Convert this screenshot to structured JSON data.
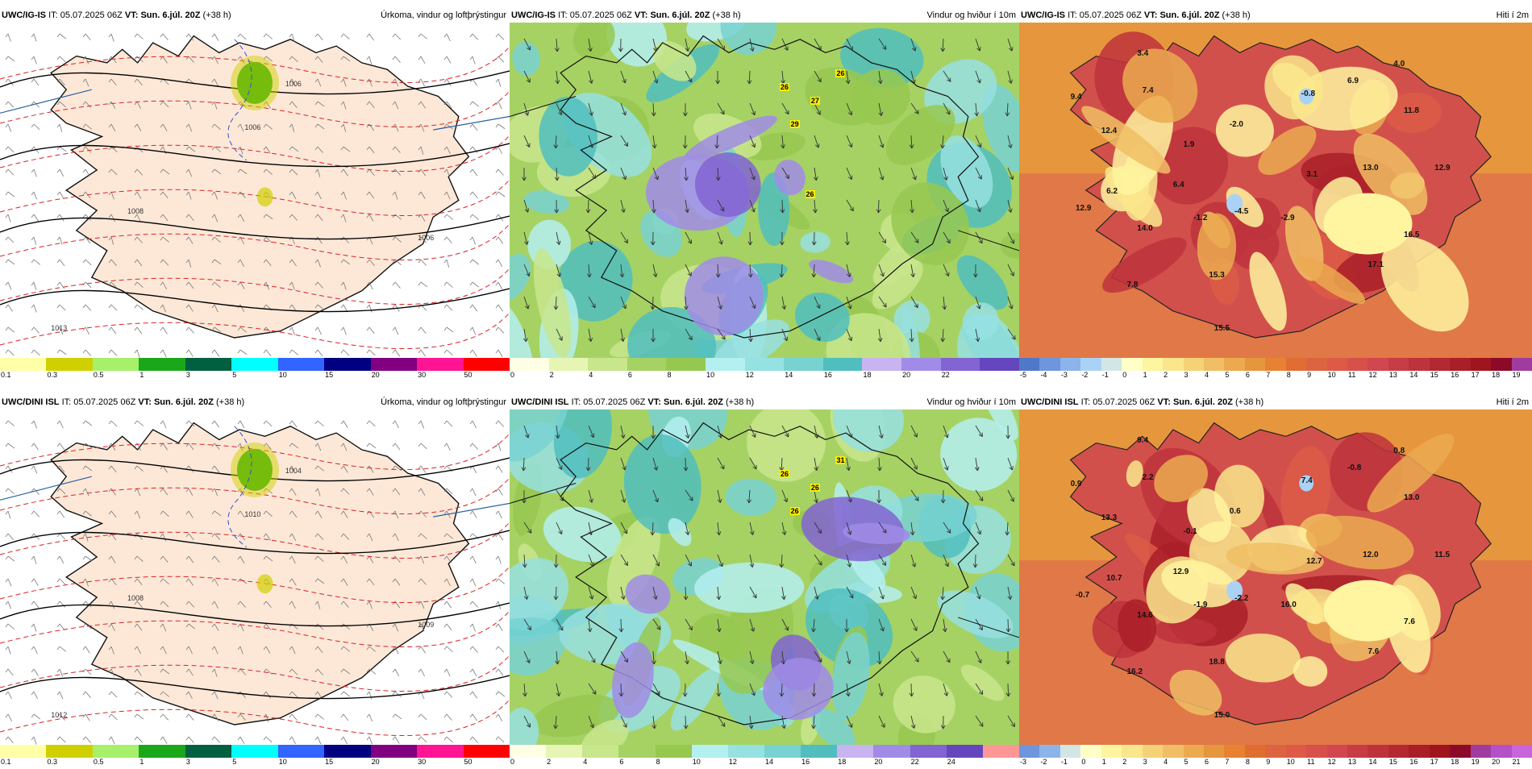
{
  "rows": [
    {
      "model": "UWC/IG-IS",
      "panels": [
        {
          "it_label": "IT:",
          "it": "05.07.2025 06Z",
          "vt_label": "VT:",
          "vt": "Sun. 6.júl. 20Z",
          "lead": "(+38 h)",
          "title": "Úrkoma, vindur og loftþrýstingur",
          "type": "precip",
          "ticks": [
            "0.1",
            "0.3",
            "0.5",
            "1",
            "3",
            "5",
            "10",
            "15",
            "20",
            "30",
            "50"
          ],
          "colors": [
            "#ffffa8",
            "#d0d000",
            "#a6f06a",
            "#1aa81a",
            "#006040",
            "#00ffff",
            "#3264ff",
            "#000080",
            "#800080",
            "#ff1493",
            "#ff0000"
          ],
          "labels": [
            {
              "t": "1006"
            },
            {
              "t": "1006"
            },
            {
              "t": "1006"
            },
            {
              "t": "1008"
            },
            {
              "t": "1013"
            }
          ]
        },
        {
          "it_label": "IT:",
          "it": "05.07.2025 06Z",
          "vt_label": "VT:",
          "vt": "Sun. 6.júl. 20Z",
          "lead": "(+38 h)",
          "title": "Vindur og hviður í 10m",
          "type": "wind",
          "ticks": [
            "0",
            "2",
            "4",
            "6",
            "8",
            "10",
            "12",
            "14",
            "16",
            "18",
            "20",
            "22"
          ],
          "colors": [
            "#ffffe6",
            "#e6f5b4",
            "#c8e68c",
            "#a6d264",
            "#96c850",
            "#b4f0f0",
            "#96e1e1",
            "#78d2d2",
            "#50bebe",
            "#c8b4f0",
            "#a08ce6",
            "#8264d2",
            "#6446be"
          ],
          "gusts": [
            "26",
            "27",
            "26",
            "29",
            "26"
          ]
        },
        {
          "it_label": "IT:",
          "it": "05.07.2025 06Z",
          "vt_label": "VT:",
          "vt": "Sun. 6.júl. 20Z",
          "lead": "(+38 h)",
          "title": "Hiti í 2m",
          "type": "temp",
          "ticks": [
            "-5",
            "-4",
            "-3",
            "-2",
            "-1",
            "0",
            "1",
            "2",
            "3",
            "4",
            "5",
            "6",
            "7",
            "8",
            "9",
            "10",
            "11",
            "12",
            "13",
            "14",
            "15",
            "16",
            "17",
            "18",
            "19"
          ],
          "colors": [
            "#5078c8",
            "#6e96dc",
            "#8cb4eb",
            "#aad2f5",
            "#d2e6e6",
            "#ffffc8",
            "#fff5a0",
            "#fae68c",
            "#f5d278",
            "#f0be64",
            "#ebaa50",
            "#e6963c",
            "#e68232",
            "#e06e32",
            "#dc6441",
            "#dc5a46",
            "#d7504b",
            "#d24650",
            "#c83c46",
            "#be323c",
            "#b42832",
            "#aa1e28",
            "#a0141e",
            "#8c0a28",
            "#a03ca0"
          ],
          "values": [
            "3.4",
            "4.0",
            "9.4",
            "7.4",
            "-0.8",
            "6.9",
            "12.4",
            "-2.0",
            "11.8",
            "1.9",
            "3.1",
            "13.0",
            "12.9",
            "6.2",
            "6.4",
            "12.9",
            "-1.2",
            "-4.5",
            "-2.9",
            "14.0",
            "16.5",
            "17.1",
            "7.8",
            "15.3",
            "15.5"
          ]
        }
      ]
    },
    {
      "model": "UWC/DINI ISL",
      "panels": [
        {
          "it_label": "IT:",
          "it": "05.07.2025 06Z",
          "vt_label": "VT:",
          "vt": "Sun. 6.júl. 20Z",
          "lead": "(+38 h)",
          "title": "Úrkoma, vindur og loftþrýstingur",
          "type": "precip",
          "ticks": [
            "0.1",
            "0.3",
            "0.5",
            "1",
            "3",
            "5",
            "10",
            "15",
            "20",
            "30",
            "50"
          ],
          "colors": [
            "#ffffa8",
            "#d0d000",
            "#a6f06a",
            "#1aa81a",
            "#006040",
            "#00ffff",
            "#3264ff",
            "#000080",
            "#800080",
            "#ff1493",
            "#ff0000"
          ],
          "labels": [
            {
              "t": "1004"
            },
            {
              "t": "1010"
            },
            {
              "t": "1009"
            },
            {
              "t": "1008"
            },
            {
              "t": "1012"
            }
          ]
        },
        {
          "it_label": "IT:",
          "it": "05.07.2025 06Z",
          "vt_label": "VT:",
          "vt": "Sun. 6.júl. 20Z",
          "lead": "(+38 h)",
          "title": "Vindur og hviður í 10m",
          "type": "wind",
          "ticks": [
            "0",
            "2",
            "4",
            "6",
            "8",
            "10",
            "12",
            "14",
            "16",
            "18",
            "20",
            "22",
            "24"
          ],
          "colors": [
            "#ffffe6",
            "#e6f5b4",
            "#c8e68c",
            "#a6d264",
            "#96c850",
            "#b4f0f0",
            "#96e1e1",
            "#78d2d2",
            "#50bebe",
            "#c8b4f0",
            "#a08ce6",
            "#8264d2",
            "#6446be",
            "#ff9696"
          ],
          "gusts": [
            "26",
            "26",
            "31",
            "26"
          ]
        },
        {
          "it_label": "IT:",
          "it": "05.07.2025 06Z",
          "vt_label": "VT:",
          "vt": "Sun. 6.júl. 20Z",
          "lead": "(+38 h)",
          "title": "Hiti í 2m",
          "type": "temp",
          "ticks": [
            "-3",
            "-2",
            "-1",
            "0",
            "1",
            "2",
            "3",
            "4",
            "5",
            "6",
            "7",
            "8",
            "9",
            "10",
            "11",
            "12",
            "13",
            "14",
            "15",
            "16",
            "17",
            "18",
            "19",
            "20",
            "21"
          ],
          "colors": [
            "#6e96dc",
            "#8cb4eb",
            "#d2e6e6",
            "#ffffc8",
            "#fff5a0",
            "#fae68c",
            "#f5d278",
            "#f0be64",
            "#ebaa50",
            "#e6963c",
            "#e68232",
            "#e06e32",
            "#dc6441",
            "#dc5a46",
            "#d7504b",
            "#d24650",
            "#c83c46",
            "#be323c",
            "#b42832",
            "#aa1e28",
            "#a0141e",
            "#8c0a28",
            "#a03ca0",
            "#b450c8",
            "#c864dc"
          ],
          "values": [
            "9.4",
            "0.8",
            "0.9",
            "2.2",
            "7.4",
            "-0.8",
            "13.3",
            "0.6",
            "13.0",
            "-0.1",
            "12.7",
            "12.0",
            "11.5",
            "10.7",
            "12.9",
            "-0.7",
            "-1.9",
            "-2.2",
            "16.0",
            "14.6",
            "7.6",
            "7.6",
            "16.2",
            "18.8",
            "15.0"
          ]
        }
      ]
    }
  ]
}
